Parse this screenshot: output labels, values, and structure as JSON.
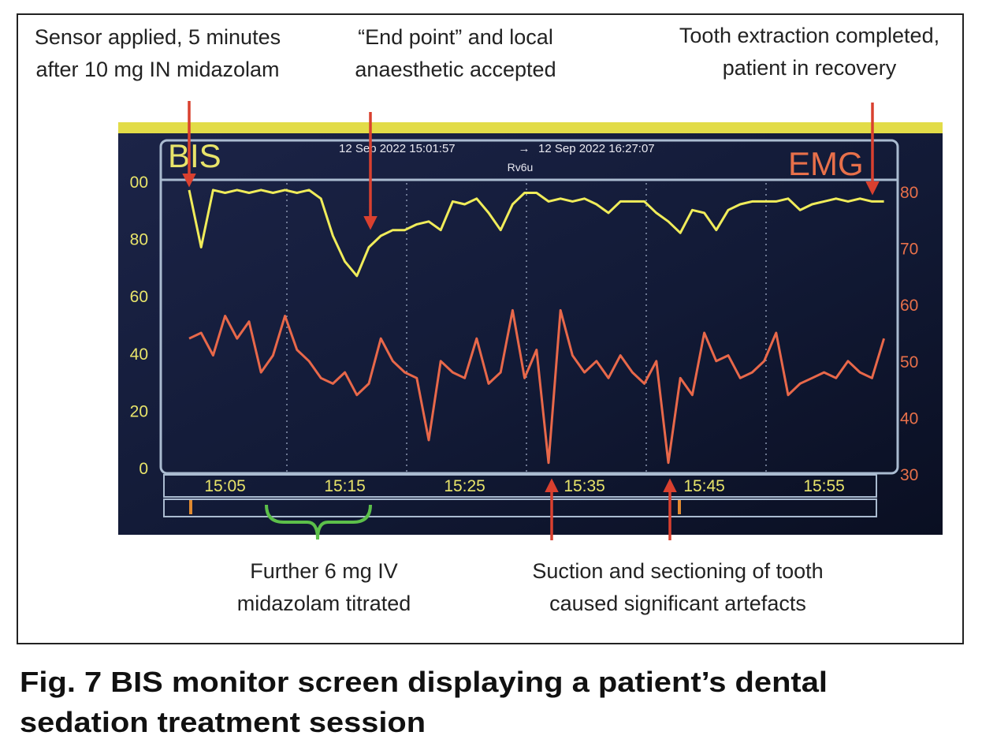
{
  "annotations": [
    {
      "lines": [
        "Sensor applied, 5 minutes",
        "after 10 mg IN midazolam"
      ]
    },
    {
      "lines": [
        "“End point” and local",
        "anaesthetic accepted"
      ]
    },
    {
      "lines": [
        "Tooth extraction completed,",
        "patient in recovery"
      ]
    },
    {
      "lines": [
        "Further 6 mg IV",
        "midazolam titrated"
      ]
    },
    {
      "lines": [
        "Suction and sectioning of tooth",
        "caused significant artefacts"
      ]
    }
  ],
  "caption": {
    "lines": [
      "Fig. 7  BIS monitor screen displaying a patient’s dental",
      "sedation treatment session"
    ]
  },
  "chart_data": {
    "type": "line",
    "left_label": "BIS",
    "right_label": "EMG",
    "start_time": "12 Sep 2022 15:01:57",
    "arrow": "→",
    "end_time": "12 Sep 2022  16:27:07",
    "device": "Rv6u",
    "categories": [
      null,
      null,
      null,
      "15:05",
      null,
      null,
      null,
      null,
      null,
      null,
      null,
      null,
      null,
      "15:15",
      null,
      null,
      null,
      null,
      null,
      null,
      null,
      null,
      null,
      "15:25",
      null,
      null,
      null,
      null,
      null,
      null,
      null,
      null,
      null,
      "15:35",
      null,
      null,
      null,
      null,
      null,
      null,
      null,
      null,
      null,
      "15:45",
      null,
      null,
      null,
      null,
      null,
      null,
      null,
      null,
      null,
      "15:55",
      null,
      null,
      null,
      null,
      null
    ],
    "series": [
      {
        "name": "BIS",
        "color": "#f0ec5a",
        "axis": "y",
        "values": [
          97,
          77,
          97,
          96,
          97,
          96,
          97,
          96,
          97,
          96,
          97,
          94,
          81,
          72,
          67,
          77,
          81,
          83,
          83,
          85,
          86,
          83,
          93,
          92,
          94,
          89,
          83,
          92,
          96,
          96,
          93,
          94,
          93,
          94,
          92,
          89,
          93,
          93,
          93,
          89,
          86,
          82,
          90,
          89,
          83,
          90,
          92,
          93,
          93,
          93,
          94,
          90,
          92,
          93,
          94,
          93,
          94,
          93,
          93
        ]
      },
      {
        "name": "EMG",
        "color": "#e8684a",
        "axis": "y2",
        "values": [
          54,
          55,
          51,
          58,
          54,
          57,
          48,
          51,
          58,
          52,
          50,
          47,
          46,
          48,
          44,
          46,
          54,
          50,
          48,
          47,
          36,
          50,
          48,
          47,
          54,
          46,
          48,
          59,
          47,
          52,
          32,
          59,
          51,
          48,
          50,
          47,
          51,
          48,
          46,
          50,
          32,
          47,
          44,
          55,
          50,
          51,
          47,
          48,
          50,
          55,
          44,
          46,
          47,
          48,
          47,
          50,
          48,
          47,
          54
        ]
      }
    ],
    "ylim": [
      0,
      100
    ],
    "yticks": [
      0,
      20,
      40,
      60,
      80,
      {
        "value": 100,
        "label": "00"
      }
    ],
    "y2lim": [
      30,
      80
    ],
    "y2ticks": [
      30,
      40,
      50,
      60,
      70,
      80
    ]
  }
}
